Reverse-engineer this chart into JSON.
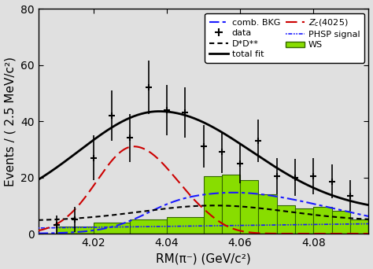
{
  "xlim": [
    4.005,
    4.095
  ],
  "ylim": [
    0,
    80
  ],
  "xlabel": "RM(π⁻) (GeV/c²)",
  "ylabel": "Events / ( 2.5 MeV/c²)",
  "bg_color": "#e0e0e0",
  "data_x": [
    4.01,
    4.015,
    4.02,
    4.025,
    4.03,
    4.035,
    4.04,
    4.045,
    4.05,
    4.055,
    4.06,
    4.065,
    4.07,
    4.075,
    4.08,
    4.085,
    4.09
  ],
  "data_y": [
    3.0,
    5.0,
    27.0,
    42.0,
    34.0,
    52.0,
    44.0,
    43.0,
    31.0,
    29.0,
    25.0,
    33.0,
    20.5,
    20.0,
    20.5,
    18.5,
    13.5
  ],
  "data_yerr": [
    3.5,
    4.5,
    8.0,
    9.0,
    8.5,
    9.5,
    9.0,
    9.0,
    7.5,
    7.5,
    7.0,
    7.5,
    6.5,
    6.5,
    6.5,
    6.0,
    5.5
  ],
  "total_fit_color": "#000000",
  "zc_color": "#cc0000",
  "comb_bkg_color": "#1a1aff",
  "dstar_color": "#000000",
  "phsp_color": "#1a1aff",
  "ws_color": "#88dd00",
  "ws_edge_color": "#336600",
  "ws_edges": [
    4.01,
    4.02,
    4.03,
    4.04,
    4.05,
    4.055,
    4.06,
    4.065,
    4.07,
    4.075,
    4.08,
    4.085,
    4.09,
    4.095
  ],
  "ws_vals": [
    2.5,
    4.0,
    5.0,
    6.0,
    20.5,
    21.0,
    19.0,
    14.0,
    10.0,
    9.0,
    9.5,
    8.0,
    5.0
  ],
  "xticks": [
    4.02,
    4.04,
    4.06,
    4.08
  ],
  "yticks": [
    0,
    20,
    40,
    60,
    80
  ],
  "tick_label_fontsize": 10,
  "axis_label_fontsize": 11
}
